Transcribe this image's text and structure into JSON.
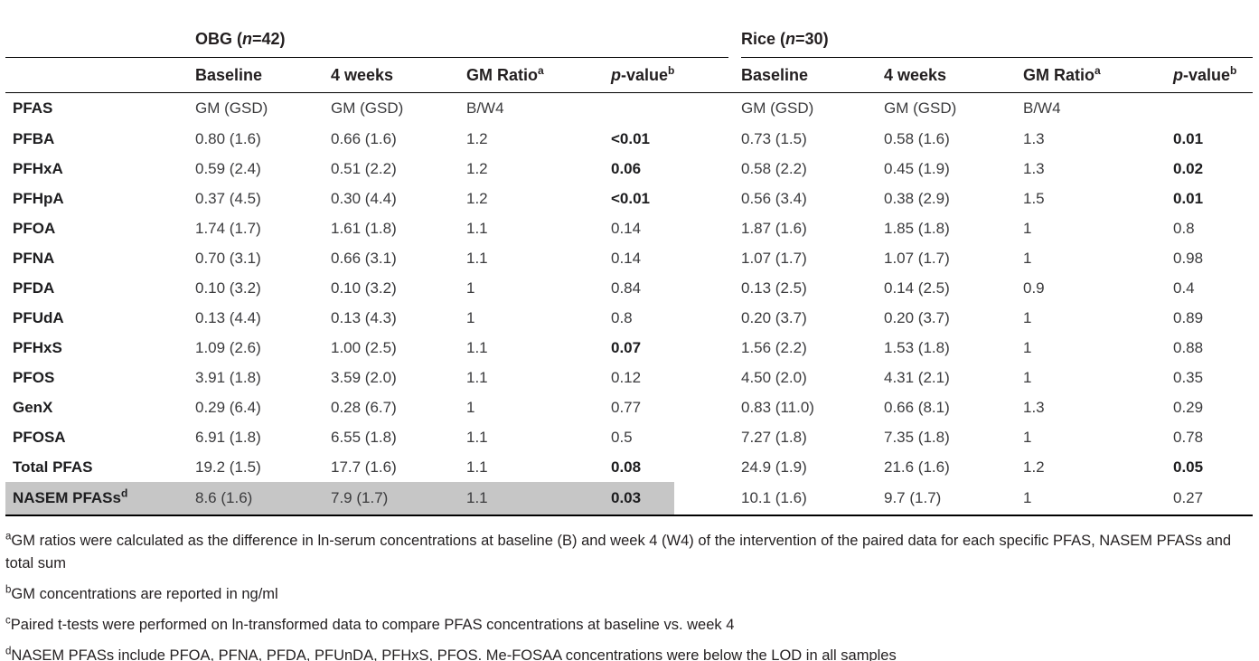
{
  "table": {
    "groups": {
      "obg": {
        "prefix": "OBG (",
        "n": "n",
        "suffix": "=42)"
      },
      "rice": {
        "prefix": "Rice (",
        "n": "n",
        "suffix": "=30)"
      }
    },
    "col_headers": {
      "baseline": "Baseline",
      "four_weeks": "4 weeks",
      "gm_ratio": "GM Ratio",
      "gm_ratio_sup": "a",
      "p_italic": "p",
      "p_rest": "-value",
      "p_sup": "b"
    },
    "rows": [
      {
        "label": "PFAS",
        "cells": [
          "GM (GSD)",
          "GM (GSD)",
          "B/W4",
          "",
          "GM (GSD)",
          "GM (GSD)",
          "B/W4",
          ""
        ],
        "bold_cells": [],
        "units_row": true
      },
      {
        "label": "PFBA",
        "cells": [
          "0.80 (1.6)",
          "0.66 (1.6)",
          "1.2",
          "<0.01",
          "0.73 (1.5)",
          "0.58 (1.6)",
          "1.3",
          "0.01"
        ],
        "bold_cells": [
          3,
          7
        ]
      },
      {
        "label": "PFHxA",
        "cells": [
          "0.59 (2.4)",
          "0.51 (2.2)",
          "1.2",
          "0.06",
          "0.58 (2.2)",
          "0.45 (1.9)",
          "1.3",
          "0.02"
        ],
        "bold_cells": [
          3,
          7
        ]
      },
      {
        "label": "PFHpA",
        "cells": [
          "0.37 (4.5)",
          "0.30 (4.4)",
          "1.2",
          "<0.01",
          "0.56 (3.4)",
          "0.38 (2.9)",
          "1.5",
          "0.01"
        ],
        "bold_cells": [
          3,
          7
        ]
      },
      {
        "label": "PFOA",
        "cells": [
          "1.74 (1.7)",
          "1.61 (1.8)",
          "1.1",
          "0.14",
          "1.87 (1.6)",
          "1.85 (1.8)",
          "1",
          "0.8"
        ],
        "bold_cells": []
      },
      {
        "label": "PFNA",
        "cells": [
          "0.70 (3.1)",
          "0.66 (3.1)",
          "1.1",
          "0.14",
          "1.07 (1.7)",
          "1.07 (1.7)",
          "1",
          "0.98"
        ],
        "bold_cells": []
      },
      {
        "label": "PFDA",
        "cells": [
          "0.10 (3.2)",
          "0.10 (3.2)",
          "1",
          "0.84",
          "0.13 (2.5)",
          "0.14 (2.5)",
          "0.9",
          "0.4"
        ],
        "bold_cells": []
      },
      {
        "label": "PFUdA",
        "cells": [
          "0.13 (4.4)",
          "0.13 (4.3)",
          "1",
          "0.8",
          "0.20 (3.7)",
          "0.20 (3.7)",
          "1",
          "0.89"
        ],
        "bold_cells": []
      },
      {
        "label": "PFHxS",
        "cells": [
          "1.09 (2.6)",
          "1.00 (2.5)",
          "1.1",
          "0.07",
          "1.56 (2.2)",
          "1.53 (1.8)",
          "1",
          "0.88"
        ],
        "bold_cells": [
          3
        ]
      },
      {
        "label": "PFOS",
        "cells": [
          "3.91 (1.8)",
          "3.59 (2.0)",
          "1.1",
          "0.12",
          "4.50 (2.0)",
          "4.31 (2.1)",
          "1",
          "0.35"
        ],
        "bold_cells": []
      },
      {
        "label": "GenX",
        "cells": [
          "0.29 (6.4)",
          "0.28 (6.7)",
          "1",
          "0.77",
          "0.83 (11.0)",
          "0.66 (8.1)",
          "1.3",
          "0.29"
        ],
        "bold_cells": []
      },
      {
        "label": "PFOSA",
        "cells": [
          "6.91 (1.8)",
          "6.55 (1.8)",
          "1.1",
          "0.5",
          "7.27 (1.8)",
          "7.35 (1.8)",
          "1",
          "0.78"
        ],
        "bold_cells": []
      },
      {
        "label": "Total PFAS",
        "cells": [
          "19.2 (1.5)",
          "17.7 (1.6)",
          "1.1",
          "0.08",
          "24.9 (1.9)",
          "21.6 (1.6)",
          "1.2",
          "0.05"
        ],
        "bold_cells": [
          3,
          7
        ]
      },
      {
        "label": "NASEM PFASs",
        "label_sup": "d",
        "cells": [
          "8.6 (1.6)",
          "7.9 (1.7)",
          "1.1",
          "0.03",
          "10.1 (1.6)",
          "9.7 (1.7)",
          "1",
          "0.27"
        ],
        "bold_cells": [
          3
        ],
        "highlight": true
      }
    ]
  },
  "footnotes": [
    {
      "sup": "a",
      "text": "GM ratios were calculated as the difference in ln-serum concentrations at baseline (B) and week 4 (W4) of the intervention of the paired data for each specific PFAS, NASEM PFASs and total sum"
    },
    {
      "sup": "b",
      "text": "GM concentrations are reported in ng/ml"
    },
    {
      "sup": "c",
      "text": "Paired t-tests were performed on ln-transformed data to compare PFAS concentrations at baseline vs. week 4"
    },
    {
      "sup": "d",
      "text": "NASEM PFASs include PFOA, PFNA, PFDA, PFUnDA, PFHxS, PFOS. Me-FOSAA concentrations were below the LOD in all samples"
    }
  ],
  "colors": {
    "highlight_gray": "#c6c6c6",
    "rule_black": "#000000",
    "label_text": "#1d1d1f",
    "value_text": "#3b3b3d"
  }
}
